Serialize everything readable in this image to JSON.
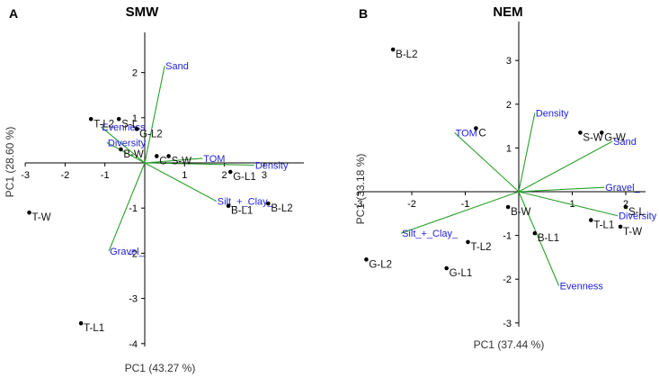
{
  "colors": {
    "vector": "#2aa02a",
    "variable_text": "#2323d8",
    "point": "#000000",
    "axis": "#000000"
  },
  "chart_data": [
    {
      "type": "scatter",
      "panel_letter": "A",
      "title": "SMW",
      "xlabel": "PC1 (43.27 %)",
      "ylabel": "PC1 (28.60 %)",
      "xlim": [
        -3,
        3.5
      ],
      "ylim": [
        -4,
        2.9
      ],
      "x_ticks": [
        -3,
        -2,
        -1,
        1,
        2,
        3
      ],
      "x_tick_labels": [
        "-3",
        "-2",
        "-1",
        "1",
        "2",
        "3"
      ],
      "y_ticks": [
        2,
        1,
        -1,
        -2,
        -3,
        -4
      ],
      "y_tick_labels": [
        "2",
        "1",
        "-1",
        "-2",
        "-3",
        "-4"
      ],
      "points": [
        {
          "label": "T-W",
          "x": -2.9,
          "y": -1.1
        },
        {
          "label": "T-L1",
          "x": -1.6,
          "y": -3.55
        },
        {
          "label": "T-L2",
          "x": -1.35,
          "y": 0.97
        },
        {
          "label": "S-L",
          "x": -0.65,
          "y": 0.97
        },
        {
          "label": "G-L2",
          "x": -0.2,
          "y": 0.75
        },
        {
          "label": "B-W",
          "x": -0.6,
          "y": 0.3
        },
        {
          "label": "C",
          "x": 0.3,
          "y": 0.15
        },
        {
          "label": "S-W",
          "x": 0.6,
          "y": 0.15
        },
        {
          "label": "G-L1",
          "x": 2.15,
          "y": -0.2
        },
        {
          "label": "B-L1",
          "x": 2.1,
          "y": -0.95
        },
        {
          "label": "B-L2",
          "x": 3.1,
          "y": -0.9
        }
      ],
      "variables": [
        {
          "label": "Sand",
          "x": 0.5,
          "y": 2.15
        },
        {
          "label": "Evenness",
          "x": -1.1,
          "y": 0.8
        },
        {
          "label": "Diversity",
          "x": -0.95,
          "y": 0.45
        },
        {
          "label": "TOM",
          "x": 1.45,
          "y": 0.1
        },
        {
          "label": "Density",
          "x": 2.75,
          "y": -0.05
        },
        {
          "label": "Silt_+_Clay_",
          "x": 1.8,
          "y": -0.85
        },
        {
          "label": "Gravel_",
          "x": -0.9,
          "y": -1.95
        }
      ]
    },
    {
      "type": "scatter",
      "panel_letter": "B",
      "title": "NEM",
      "xlabel": "PC1 (37.44 %)",
      "ylabel": "PC1 (33.18 %)",
      "xlim": [
        -3,
        2.6
      ],
      "ylim": [
        -3,
        3.9
      ],
      "x_ticks": [
        -3,
        -2,
        -1,
        1,
        2
      ],
      "x_tick_labels": [
        "-3",
        "-2",
        "-1",
        "1",
        "2"
      ],
      "y_ticks": [
        3,
        2,
        1,
        -1,
        -2,
        -3
      ],
      "y_tick_labels": [
        "3",
        "2",
        "1",
        "-1",
        "-2",
        "-3"
      ],
      "points": [
        {
          "label": "B-L2",
          "x": -2.35,
          "y": 3.25
        },
        {
          "label": "G-L2",
          "x": -2.85,
          "y": -1.55
        },
        {
          "label": "G-L1",
          "x": -1.35,
          "y": -1.75
        },
        {
          "label": "T-L2",
          "x": -0.95,
          "y": -1.15
        },
        {
          "label": "B-W",
          "x": -0.2,
          "y": -0.35
        },
        {
          "label": "B-L1",
          "x": 0.3,
          "y": -0.95
        },
        {
          "label": "C",
          "x": -0.8,
          "y": 1.45
        },
        {
          "label": "S-W",
          "x": 1.15,
          "y": 1.35
        },
        {
          "label": "G-W",
          "x": 1.55,
          "y": 1.35
        },
        {
          "label": "S-L",
          "x": 2.0,
          "y": -0.35
        },
        {
          "label": "T-L1",
          "x": 1.35,
          "y": -0.65
        },
        {
          "label": "T-W",
          "x": 1.9,
          "y": -0.8
        }
      ],
      "variables": [
        {
          "label": "Density",
          "x": 0.3,
          "y": 1.8
        },
        {
          "label": "TOM",
          "x": -1.2,
          "y": 1.35
        },
        {
          "label": "Sand",
          "x": 1.75,
          "y": 1.15
        },
        {
          "label": "Gravel_",
          "x": 1.6,
          "y": 0.1
        },
        {
          "label": "Diversity",
          "x": 1.85,
          "y": -0.55
        },
        {
          "label": "Silt_+_Clay_",
          "x": -2.2,
          "y": -0.95
        },
        {
          "label": "Evenness",
          "x": 0.75,
          "y": -2.15
        }
      ]
    }
  ]
}
